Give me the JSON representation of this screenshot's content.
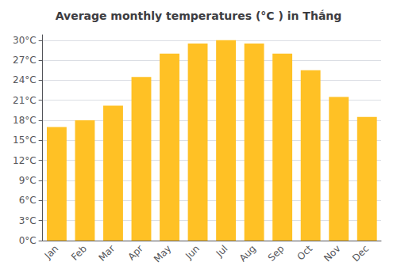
{
  "chart_data": {
    "type": "bar",
    "title": "Average monthly temperatures (°C ) in Thắng",
    "categories": [
      "Jan",
      "Feb",
      "Mar",
      "Apr",
      "May",
      "Jun",
      "Jul",
      "Aug",
      "Sep",
      "Oct",
      "Nov",
      "Dec"
    ],
    "values": [
      17.0,
      18.0,
      20.2,
      24.5,
      28.0,
      29.5,
      30.0,
      29.5,
      28.0,
      25.5,
      21.5,
      18.5
    ],
    "color": "#FFC125",
    "ylim": [
      0,
      30.8
    ],
    "yticks": [
      {
        "value": 0,
        "label": "0°C"
      },
      {
        "value": 3,
        "label": "3°C"
      },
      {
        "value": 6,
        "label": "6°C"
      },
      {
        "value": 9,
        "label": "9°C"
      },
      {
        "value": 12,
        "label": "12°C"
      },
      {
        "value": 15,
        "label": "15°C"
      },
      {
        "value": 18,
        "label": "18°C"
      },
      {
        "value": 21,
        "label": "21°C"
      },
      {
        "value": 24,
        "label": "24°C"
      },
      {
        "value": 27,
        "label": "27°C"
      },
      {
        "value": 30,
        "label": "30°C"
      }
    ],
    "grid": true
  }
}
